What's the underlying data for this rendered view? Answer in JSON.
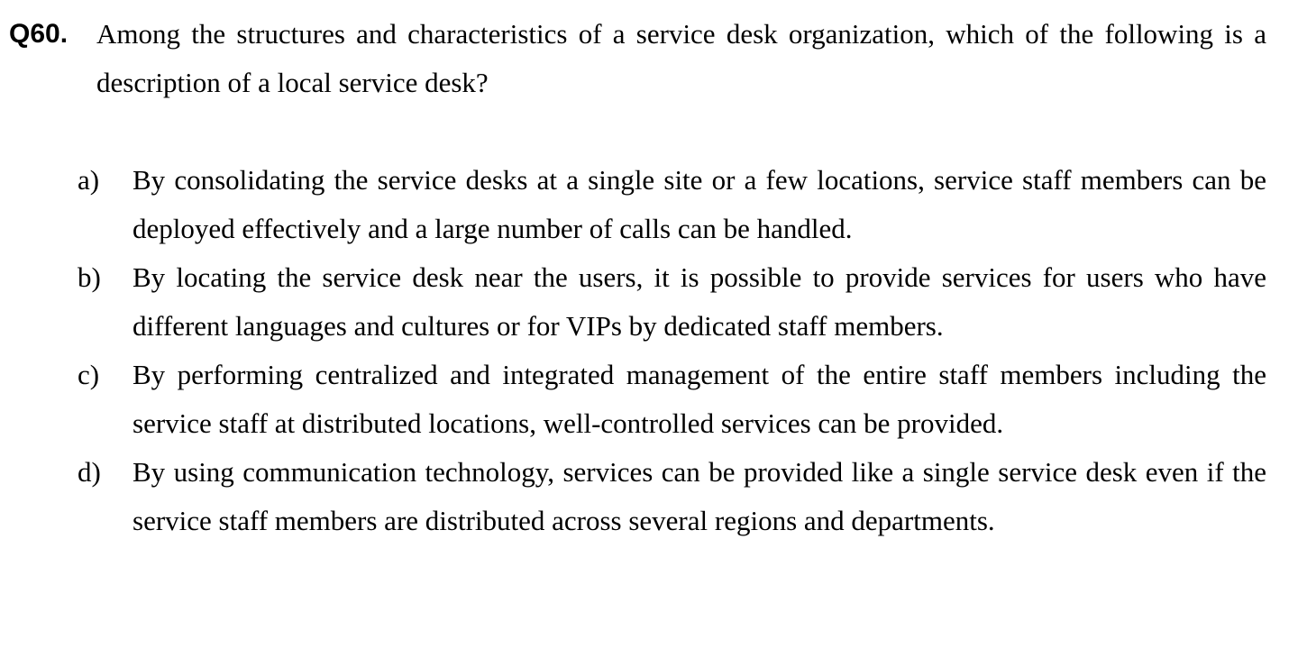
{
  "question": {
    "number": "Q60.",
    "text": "Among the structures and characteristics of a service desk organization, which of the following is a description of a local service desk?"
  },
  "options": [
    {
      "letter": "a)",
      "text": "By consolidating the service desks at a single site or a few locations, service staff members can be deployed effectively and a large number of calls can be handled."
    },
    {
      "letter": "b)",
      "text": "By locating the service desk near the users, it is possible to provide services for users who have different languages and cultures or for VIPs by dedicated staff members."
    },
    {
      "letter": "c)",
      "text": "By performing centralized and integrated management of the entire staff members including the service staff at distributed locations, well-controlled services can be provided."
    },
    {
      "letter": "d)",
      "text": "By using communication technology, services can be provided like a single service desk even if the service staff members are distributed across several regions and departments."
    }
  ]
}
